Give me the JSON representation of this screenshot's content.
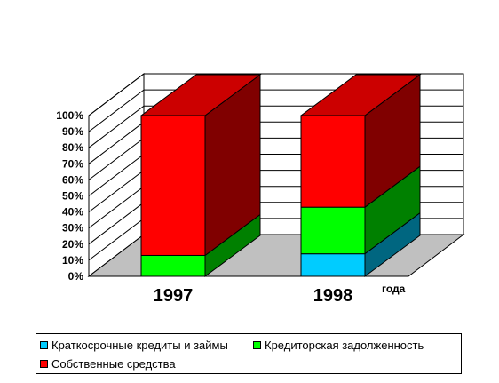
{
  "chart_data": {
    "type": "bar",
    "stacked": true,
    "three_d": true,
    "percent_stacked": true,
    "categories": [
      "1997",
      "1998"
    ],
    "x_axis_title": "года",
    "y_ticks": [
      "0%",
      "10%",
      "20%",
      "30%",
      "40%",
      "50%",
      "60%",
      "70%",
      "80%",
      "90%",
      "100%"
    ],
    "ylim": [
      0,
      100
    ],
    "grid": true,
    "legend_position": "bottom",
    "series": [
      {
        "name": "Краткосрочные кредиты и займы",
        "values": [
          0,
          14
        ],
        "color": "#00CCFF",
        "side_color": "#006680",
        "top_color": "#00A3CC"
      },
      {
        "name": "Кредиторская задолженность",
        "values": [
          13,
          29
        ],
        "color": "#00FF00",
        "side_color": "#008000",
        "top_color": "#00CC00"
      },
      {
        "name": "Собственные средства",
        "values": [
          87,
          57
        ],
        "color": "#FF0000",
        "side_color": "#800000",
        "top_color": "#CC0000"
      }
    ],
    "floor_color": "#C0C0C0"
  }
}
